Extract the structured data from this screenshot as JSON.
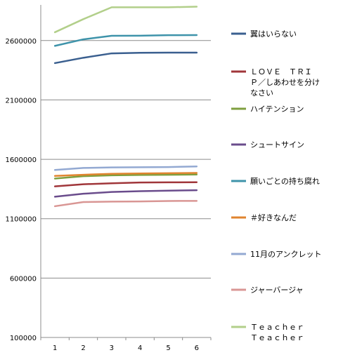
{
  "chart_data": {
    "type": "line",
    "title": "",
    "xlabel": "",
    "ylabel": "",
    "x": [
      1,
      2,
      3,
      4,
      5,
      6
    ],
    "x_tick_labels": [
      "1",
      "2",
      "3",
      "4",
      "5",
      "6"
    ],
    "ylim": [
      100000,
      2900000
    ],
    "y_ticks": [
      100000,
      600000,
      1100000,
      1600000,
      2100000,
      2600000
    ],
    "y_tick_labels": [
      "100000",
      "600000",
      "1100000",
      "1600000",
      "2100000",
      "2600000"
    ],
    "grid": "horizontal",
    "legend_position": "right",
    "series": [
      {
        "name": "翼はいらない",
        "legend_lines": [
          "翼はいらない"
        ],
        "color": "#3a5f8f",
        "values": [
          2410000,
          2455000,
          2492000,
          2497000,
          2498000,
          2498000
        ]
      },
      {
        "name": "ＬＯＶＥ ＴＲＩＰ／しあわせを分けなさい",
        "legend_lines": [
          "ＬＯＶＥ　ＴＲＩ",
          "Ｐ／しあわせを分け",
          "なさい"
        ],
        "color": "#a0363a",
        "values": [
          1372000,
          1390000,
          1398000,
          1405000,
          1406000,
          1407000
        ]
      },
      {
        "name": "ハイテンション",
        "legend_lines": [
          "ハイテンション"
        ],
        "color": "#7f9f3f",
        "values": [
          1438000,
          1458000,
          1465000,
          1468000,
          1470000,
          1472000
        ]
      },
      {
        "name": "シュートサイン",
        "legend_lines": [
          "シュートサイン"
        ],
        "color": "#6a4c8c",
        "values": [
          1285000,
          1310000,
          1325000,
          1332000,
          1336000,
          1340000
        ]
      },
      {
        "name": "願いごとの持ち腐れ",
        "legend_lines": [
          "願いごとの持ち腐れ"
        ],
        "color": "#3e93aa",
        "values": [
          2555000,
          2610000,
          2640000,
          2641000,
          2645000,
          2646000
        ]
      },
      {
        "name": "＃好きなんだ",
        "legend_lines": [
          "＃好きなんだ"
        ],
        "color": "#e0842f",
        "values": [
          1460000,
          1470000,
          1478000,
          1481000,
          1483000,
          1485000
        ]
      },
      {
        "name": "11月のアンクレット",
        "legend_lines": [
          "11月のアンクレット"
        ],
        "color": "#93a9d2",
        "values": [
          1510000,
          1527000,
          1532000,
          1533000,
          1535000,
          1540000
        ]
      },
      {
        "name": "ジャーバージャ",
        "legend_lines": [
          "ジャーバージャ"
        ],
        "color": "#d99694",
        "values": [
          1205000,
          1240000,
          1244000,
          1245000,
          1249000,
          1250000
        ]
      },
      {
        "name": "Ｔｅａｃｈｅｒ Ｔｅａｃｈｅｒ",
        "legend_lines": [
          "Ｔｅａｃｈｅｒ",
          "Ｔｅａｃｈｅｒ"
        ],
        "color": "#b2cf8a",
        "values": [
          2670000,
          2780000,
          2880000,
          2880000,
          2880000,
          2885000
        ]
      }
    ]
  }
}
